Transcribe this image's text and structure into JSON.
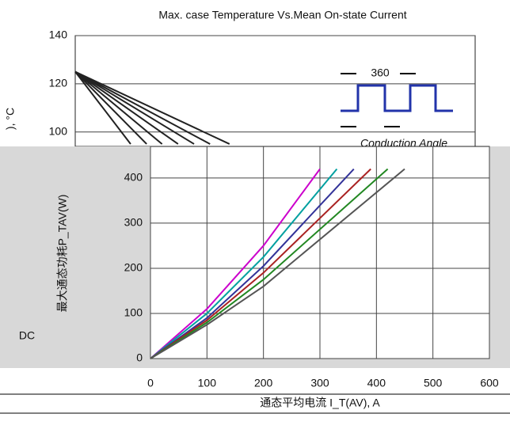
{
  "chart_data": [
    {
      "type": "line",
      "title": "Max. case Temperature Vs.Mean On-state Current",
      "y_label": "), °C",
      "xlim": [
        0,
        700
      ],
      "ylim": [
        94,
        140
      ],
      "yticks": [
        100,
        120,
        140
      ],
      "grid": true,
      "color": "#222222",
      "annotations": [
        "360",
        "Conduction Angle"
      ],
      "series": [
        {
          "x": [
            0,
            97
          ],
          "values": [
            125,
            95
          ]
        },
        {
          "x": [
            0,
            125
          ],
          "values": [
            125,
            95
          ]
        },
        {
          "x": [
            0,
            152
          ],
          "values": [
            125,
            95
          ]
        },
        {
          "x": [
            0,
            180
          ],
          "values": [
            125,
            95
          ]
        },
        {
          "x": [
            0,
            208
          ],
          "values": [
            125,
            95
          ]
        },
        {
          "x": [
            0,
            236
          ],
          "values": [
            125,
            95
          ]
        },
        {
          "x": [
            0,
            270
          ],
          "values": [
            125,
            95
          ]
        }
      ]
    },
    {
      "type": "line",
      "y_label": "最大通态功耗P_TAV(W)",
      "x_label": "通态平均电流 I_T(AV), A",
      "xlim": [
        0,
        600
      ],
      "ylim": [
        0,
        470
      ],
      "xticks": [
        0,
        100,
        200,
        300,
        400,
        500,
        600
      ],
      "yticks": [
        0,
        100,
        200,
        300,
        400
      ],
      "grid": true,
      "annotations": [
        "DC"
      ],
      "series": [
        {
          "color": "#cc00cc",
          "x": [
            0,
            100,
            200,
            300
          ],
          "values": [
            0,
            110,
            250,
            420
          ]
        },
        {
          "color": "#00a0a0",
          "x": [
            0,
            100,
            200,
            330
          ],
          "values": [
            0,
            100,
            225,
            420
          ]
        },
        {
          "color": "#333399",
          "x": [
            0,
            100,
            200,
            360
          ],
          "values": [
            0,
            90,
            205,
            420
          ]
        },
        {
          "color": "#aa2222",
          "x": [
            0,
            100,
            200,
            390
          ],
          "values": [
            0,
            85,
            190,
            420
          ]
        },
        {
          "color": "#228822",
          "x": [
            0,
            100,
            200,
            420
          ],
          "values": [
            0,
            80,
            175,
            420
          ]
        },
        {
          "color": "#555555",
          "x": [
            0,
            100,
            200,
            450
          ],
          "values": [
            0,
            75,
            160,
            420
          ]
        }
      ]
    }
  ]
}
